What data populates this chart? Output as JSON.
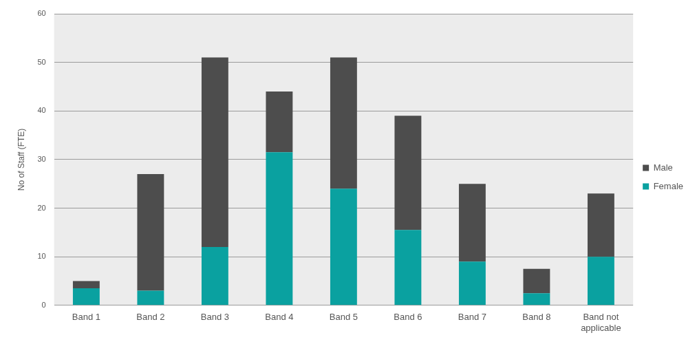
{
  "chart_data": {
    "type": "bar",
    "stacked": true,
    "ylabel": "No of Staff (FTE)",
    "categories": [
      "Band 1",
      "Band 2",
      "Band 3",
      "Band 4",
      "Band 5",
      "Band 6",
      "Band 7",
      "Band 8",
      "Band not applicable"
    ],
    "series": [
      {
        "name": "Female",
        "color": "#0aa1a0",
        "values": [
          3.5,
          3,
          12,
          31.5,
          24,
          15.5,
          9,
          2.5,
          10
        ]
      },
      {
        "name": "Male",
        "color": "#4d4d4d",
        "values": [
          1.5,
          24,
          39,
          12.5,
          27,
          23.5,
          16,
          5,
          13
        ]
      }
    ],
    "ylim": [
      0,
      60
    ],
    "yticks": [
      0,
      10,
      20,
      30,
      40,
      50,
      60
    ],
    "grid": "y",
    "legend": "right"
  }
}
